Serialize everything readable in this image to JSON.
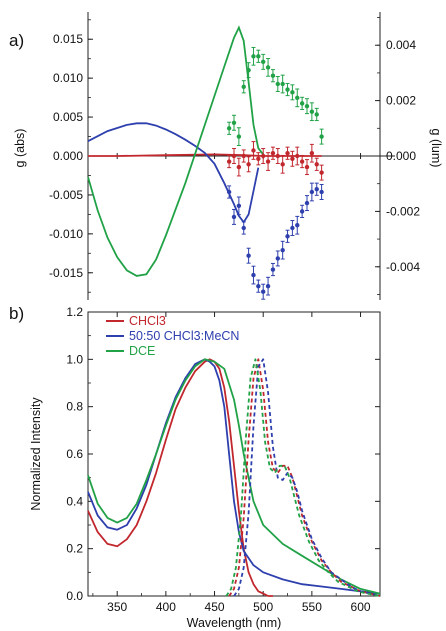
{
  "figure": {
    "panel_a_label": "a)",
    "panel_b_label": "b)"
  },
  "colors": {
    "CHCl3": "#c1272d",
    "50:50 CHCl3:MeCN": "#2e3fae",
    "DCE": "#21a247"
  },
  "chart_data": [
    {
      "type": "line",
      "panel": "a)",
      "xlim": [
        320,
        620
      ],
      "ylabel": "g (abs)",
      "ylim": [
        -0.0185,
        0.0185
      ],
      "yticks": [
        "0.015",
        "0.010",
        "0.005",
        "0.000",
        "-0.005",
        "-0.010",
        "-0.015"
      ],
      "y2label": "g (lum)",
      "y2lim": [
        -0.0052,
        0.0052
      ],
      "y2ticks": [
        "0.004",
        "0.002",
        "0.000",
        "-0.002",
        "-0.004"
      ],
      "series": [
        {
          "name": "CHCl3",
          "kind": "absorption",
          "axis": "left",
          "x": [
            320,
            350,
            400,
            450,
            480,
            500,
            520,
            540,
            560
          ],
          "y": [
            0.0,
            0.0,
            0.0001,
            0.0002,
            0.0001,
            0.0,
            0.0,
            0.0,
            0.0
          ]
        },
        {
          "name": "50:50 CHCl3:MeCN",
          "kind": "absorption",
          "axis": "left",
          "x": [
            320,
            340,
            360,
            370,
            380,
            390,
            400,
            410,
            420,
            430,
            440,
            450,
            460,
            470,
            475,
            480,
            485,
            490,
            495
          ],
          "y": [
            0.0019,
            0.0032,
            0.004,
            0.0042,
            0.0042,
            0.0039,
            0.0034,
            0.0028,
            0.0021,
            0.0013,
            0.0004,
            -0.001,
            -0.0035,
            -0.0062,
            -0.0077,
            -0.0085,
            -0.0075,
            -0.0045,
            -0.0015
          ]
        },
        {
          "name": "DCE",
          "kind": "absorption",
          "axis": "left",
          "x": [
            320,
            330,
            340,
            350,
            360,
            370,
            380,
            390,
            400,
            420,
            440,
            460,
            470,
            475,
            480,
            485,
            490,
            495,
            500
          ],
          "y": [
            -0.0027,
            -0.007,
            -0.0105,
            -0.013,
            -0.0147,
            -0.0154,
            -0.0152,
            -0.0133,
            -0.0102,
            -0.0035,
            0.004,
            0.0115,
            0.0152,
            0.0165,
            0.0148,
            0.0095,
            0.004,
            0.001,
            0.0002
          ]
        },
        {
          "name": "CHCl3",
          "kind": "luminescence",
          "axis": "right",
          "x": [
            465,
            470,
            475,
            480,
            485,
            490,
            495,
            500,
            505,
            510,
            515,
            520,
            525,
            530,
            535,
            540,
            545,
            550,
            555,
            560
          ],
          "y": [
            -0.0002,
            0.0,
            -0.0004,
            0.0,
            -0.0003,
            0.0002,
            -0.0001,
            0.0,
            -0.0002,
            0.0001,
            0.0,
            -0.0003,
            0.0001,
            -0.0001,
            0.0,
            -0.0002,
            -0.0004,
            0.0001,
            -0.0003,
            -0.0006
          ]
        },
        {
          "name": "50:50 CHCl3:MeCN",
          "kind": "luminescence",
          "axis": "right",
          "x": [
            465,
            470,
            475,
            480,
            485,
            490,
            495,
            500,
            505,
            510,
            515,
            520,
            525,
            530,
            535,
            540,
            545,
            550,
            555,
            560
          ],
          "y": [
            -0.0013,
            -0.0022,
            -0.0018,
            -0.0026,
            -0.0036,
            -0.0043,
            -0.0047,
            -0.0049,
            -0.0047,
            -0.0041,
            -0.0037,
            -0.0034,
            -0.0029,
            -0.0026,
            -0.0025,
            -0.002,
            -0.0017,
            -0.0013,
            -0.0012,
            -0.0013
          ]
        },
        {
          "name": "DCE",
          "kind": "luminescence",
          "axis": "right",
          "x": [
            465,
            470,
            475,
            480,
            485,
            490,
            495,
            500,
            505,
            510,
            515,
            520,
            525,
            530,
            535,
            540,
            545,
            550,
            555,
            560
          ],
          "y": [
            0.001,
            0.0012,
            0.0007,
            0.0025,
            0.0031,
            0.0036,
            0.0036,
            0.0034,
            0.0032,
            0.0029,
            0.0026,
            0.0026,
            0.0024,
            0.0023,
            0.0021,
            0.0019,
            0.0018,
            0.0016,
            0.0015,
            0.0007
          ]
        }
      ]
    },
    {
      "type": "line",
      "panel": "b)",
      "xlabel": "Wavelength (nm)",
      "ylabel": "Normalized Intensity",
      "xlim": [
        320,
        620
      ],
      "ylim": [
        0.0,
        1.2
      ],
      "xticks": [
        "350",
        "400",
        "450",
        "500",
        "550",
        "600"
      ],
      "yticks": [
        "0.0",
        "0.2",
        "0.4",
        "0.6",
        "0.8",
        "1.0",
        "1.2"
      ],
      "legend_position": "top-left",
      "series": [
        {
          "name": "CHCl3",
          "kind": "absorption",
          "x": [
            320,
            330,
            340,
            350,
            360,
            370,
            380,
            390,
            400,
            410,
            420,
            430,
            440,
            445,
            450,
            455,
            460,
            465,
            470,
            475,
            480,
            485,
            490,
            495,
            500,
            505,
            510
          ],
          "y": [
            0.36,
            0.27,
            0.22,
            0.21,
            0.24,
            0.3,
            0.4,
            0.52,
            0.66,
            0.79,
            0.88,
            0.95,
            0.99,
            1.0,
            0.99,
            0.96,
            0.88,
            0.74,
            0.55,
            0.36,
            0.2,
            0.1,
            0.05,
            0.02,
            0.01,
            0.0,
            0.0
          ]
        },
        {
          "name": "50:50 CHCl3:MeCN",
          "kind": "absorption",
          "x": [
            320,
            330,
            340,
            350,
            360,
            370,
            380,
            390,
            400,
            410,
            420,
            430,
            440,
            445,
            450,
            455,
            460,
            465,
            470,
            475,
            480,
            490,
            500,
            520,
            540,
            560,
            580,
            600,
            620
          ],
          "y": [
            0.44,
            0.34,
            0.29,
            0.28,
            0.3,
            0.37,
            0.47,
            0.6,
            0.73,
            0.84,
            0.92,
            0.98,
            1.0,
            0.99,
            0.97,
            0.91,
            0.8,
            0.6,
            0.4,
            0.27,
            0.19,
            0.13,
            0.1,
            0.07,
            0.05,
            0.04,
            0.03,
            0.02,
            0.01
          ]
        },
        {
          "name": "DCE",
          "kind": "absorption",
          "x": [
            320,
            330,
            340,
            350,
            360,
            370,
            380,
            390,
            400,
            410,
            420,
            430,
            440,
            450,
            460,
            470,
            475,
            480,
            485,
            490,
            500,
            520,
            540,
            560,
            580,
            600,
            620
          ],
          "y": [
            0.51,
            0.39,
            0.33,
            0.31,
            0.33,
            0.39,
            0.49,
            0.6,
            0.72,
            0.83,
            0.91,
            0.97,
            1.0,
            0.99,
            0.96,
            0.83,
            0.72,
            0.6,
            0.5,
            0.4,
            0.3,
            0.22,
            0.17,
            0.12,
            0.07,
            0.03,
            0.01
          ]
        },
        {
          "name": "CHCl3",
          "kind": "emission",
          "x": [
            465,
            470,
            475,
            480,
            485,
            490,
            495,
            500,
            505,
            510,
            515,
            520,
            525,
            530,
            535,
            540,
            550,
            560,
            570,
            580,
            590,
            600,
            610,
            620
          ],
          "y": [
            0.0,
            0.03,
            0.12,
            0.33,
            0.66,
            0.92,
            1.0,
            0.87,
            0.65,
            0.54,
            0.52,
            0.55,
            0.55,
            0.5,
            0.42,
            0.34,
            0.23,
            0.15,
            0.1,
            0.06,
            0.04,
            0.02,
            0.01,
            0.0
          ]
        },
        {
          "name": "50:50 CHCl3:MeCN",
          "kind": "emission",
          "x": [
            470,
            475,
            480,
            485,
            490,
            495,
            500,
            505,
            510,
            515,
            520,
            525,
            530,
            535,
            540,
            550,
            560,
            570,
            580,
            590,
            600,
            610,
            620
          ],
          "y": [
            0.0,
            0.03,
            0.12,
            0.35,
            0.72,
            0.97,
            1.0,
            0.86,
            0.63,
            0.5,
            0.49,
            0.52,
            0.5,
            0.44,
            0.36,
            0.24,
            0.16,
            0.1,
            0.07,
            0.04,
            0.02,
            0.01,
            0.0
          ]
        },
        {
          "name": "DCE",
          "kind": "emission",
          "x": [
            462,
            467,
            472,
            477,
            482,
            487,
            492,
            497,
            502,
            507,
            512,
            517,
            522,
            527,
            532,
            537,
            547,
            557,
            567,
            577,
            587,
            597,
            607,
            620
          ],
          "y": [
            0.0,
            0.03,
            0.12,
            0.33,
            0.66,
            0.92,
            1.0,
            0.87,
            0.65,
            0.54,
            0.52,
            0.55,
            0.55,
            0.5,
            0.42,
            0.34,
            0.23,
            0.15,
            0.1,
            0.06,
            0.04,
            0.02,
            0.01,
            0.0
          ]
        }
      ]
    }
  ]
}
